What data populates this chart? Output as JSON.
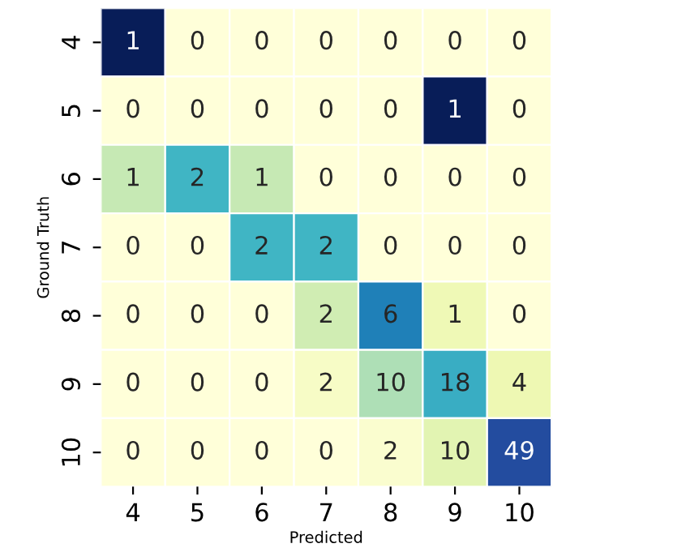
{
  "chart_data": {
    "type": "heatmap",
    "xlabel": "Predicted",
    "ylabel": "Ground Truth",
    "categories": [
      "4",
      "5",
      "6",
      "7",
      "8",
      "9",
      "10"
    ],
    "y_categories": [
      "4",
      "5",
      "6",
      "7",
      "8",
      "9",
      "10"
    ],
    "cells": [
      [
        1,
        0,
        0,
        0,
        0,
        0,
        0
      ],
      [
        0,
        0,
        0,
        0,
        0,
        1,
        0
      ],
      [
        1,
        2,
        1,
        0,
        0,
        0,
        0
      ],
      [
        0,
        0,
        2,
        2,
        0,
        0,
        0
      ],
      [
        0,
        0,
        0,
        2,
        6,
        1,
        0
      ],
      [
        0,
        0,
        0,
        2,
        10,
        18,
        4
      ],
      [
        0,
        0,
        0,
        0,
        2,
        10,
        49
      ]
    ],
    "data_labels": true
  }
}
